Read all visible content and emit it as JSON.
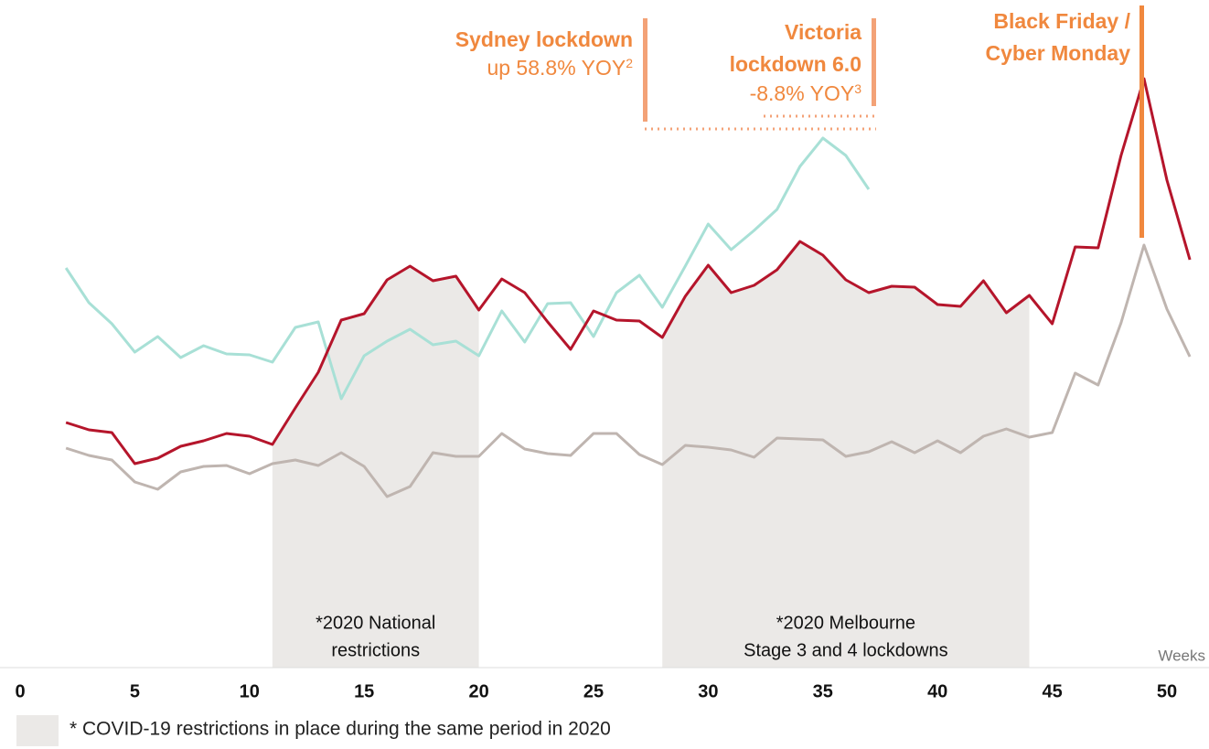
{
  "chart_data": {
    "type": "line",
    "x": [
      2,
      3,
      4,
      5,
      6,
      7,
      8,
      9,
      10,
      11,
      12,
      13,
      14,
      15,
      16,
      17,
      18,
      19,
      20,
      21,
      22,
      23,
      24,
      25,
      26,
      27,
      28,
      29,
      30,
      31,
      32,
      33,
      34,
      35,
      36,
      37,
      38,
      39,
      40,
      41,
      42,
      43,
      44,
      45,
      46,
      47,
      48,
      49,
      50,
      51
    ],
    "series": [
      {
        "color": "#a8e0d6",
        "values": [
          437,
          399,
          376,
          345,
          362,
          339,
          352,
          343,
          342,
          334,
          372,
          378,
          294,
          341,
          357,
          370,
          353,
          357,
          341,
          390,
          356,
          398,
          399,
          362,
          410,
          429,
          394,
          439,
          485,
          457,
          478,
          501,
          548,
          579,
          560,
          523,
          null,
          null,
          null,
          null,
          null,
          null,
          null,
          null,
          null,
          null,
          null,
          null,
          null,
          null
        ]
      },
      {
        "color": "#bfb5b0",
        "values": [
          240,
          232,
          227,
          203,
          195,
          214,
          220,
          221,
          212,
          223,
          227,
          221,
          235,
          220,
          187,
          198,
          235,
          231,
          231,
          256,
          239,
          234,
          232,
          256,
          256,
          233,
          222,
          243,
          241,
          238,
          230,
          251,
          250,
          249,
          231,
          236,
          247,
          235,
          248,
          235,
          253,
          261,
          252,
          257,
          322,
          309,
          377,
          462,
          392,
          340
        ]
      },
      {
        "color": "#b5152b",
        "values": [
          268,
          260,
          257,
          223,
          229,
          242,
          248,
          256,
          253,
          244,
          284,
          323,
          380,
          387,
          424,
          439,
          423,
          428,
          391,
          425,
          410,
          378,
          348,
          390,
          380,
          379,
          361,
          406,
          440,
          410,
          418,
          435,
          466,
          451,
          424,
          410,
          417,
          416,
          397,
          395,
          423,
          388,
          407,
          376,
          460,
          459,
          560,
          644,
          533,
          446
        ]
      }
    ],
    "xlim": [
      0,
      52
    ],
    "xticks": [
      0,
      5,
      10,
      15,
      20,
      25,
      30,
      35,
      40,
      45,
      50
    ],
    "ylim": [
      0,
      730
    ],
    "x_label": "Weeks",
    "shaded_regions": [
      {
        "start": 11,
        "end": 20,
        "label": [
          "*2020 National",
          "restrictions"
        ]
      },
      {
        "start": 28,
        "end": 44,
        "label": [
          "*2020 Melbourne",
          "Stage 3 and 4 lockdowns"
        ]
      }
    ],
    "annotations": [
      {
        "lines": [
          "Sydney lockdown"
        ],
        "note": "up 58.8% YOY",
        "sup": "2"
      },
      {
        "lines": [
          "Victoria",
          "lockdown 6.0"
        ],
        "note": "-8.8% YOY",
        "sup": "3"
      },
      {
        "lines": [
          "Black Friday /",
          "Cyber Monday"
        ]
      }
    ],
    "footnote": "* COVID-19 restrictions in place during the same period in 2020"
  }
}
